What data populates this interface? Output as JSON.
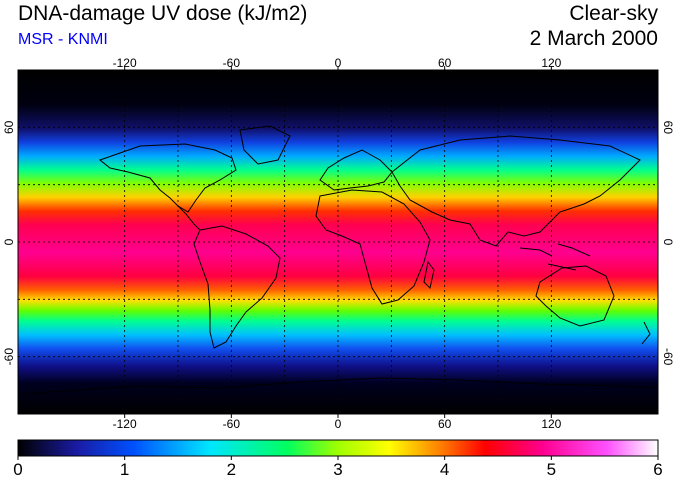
{
  "header": {
    "title": "DNA-damage UV dose (kJ/m2)",
    "subtitle": "MSR - KNMI",
    "condition": "Clear-sky",
    "date": "2 March 2000"
  },
  "map": {
    "projection": "equirectangular",
    "lon_range": [
      -180,
      180
    ],
    "lat_range": [
      -90,
      90
    ],
    "lon_ticks": [
      "-120",
      "-60",
      "0",
      "60",
      "120"
    ],
    "lon_tick_values": [
      -120,
      -60,
      0,
      60,
      120
    ],
    "lat_ticks": [
      "60",
      "0",
      "-60"
    ],
    "lat_tick_values": [
      60,
      0,
      -60
    ],
    "grid": "dotted",
    "grid_lat_values": [
      -60,
      -30,
      0,
      30,
      60
    ],
    "grid_lon_values": [
      -120,
      -90,
      -60,
      -30,
      0,
      30,
      60,
      90,
      120
    ]
  },
  "colorbar": {
    "min": 0,
    "max": 6,
    "labels": [
      "0",
      "1",
      "2",
      "3",
      "4",
      "5",
      "6"
    ],
    "colors": [
      "#000000",
      "#1a1aa0",
      "#0050ff",
      "#00e6ff",
      "#00ff60",
      "#a0ff00",
      "#ffff00",
      "#ff8000",
      "#ff0000",
      "#ff0090",
      "#ff50ff",
      "#ffffff"
    ]
  }
}
